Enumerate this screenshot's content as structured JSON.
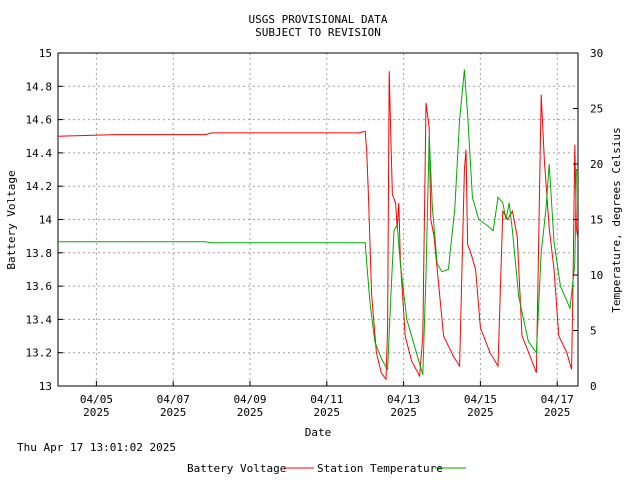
{
  "chart_data": {
    "type": "line",
    "title": [
      "USGS PROVISIONAL DATA",
      "SUBJECT TO REVISION"
    ],
    "xlabel": "Date",
    "ylabel": "Battery Voltage",
    "y2label": "Temperature, degrees Celsius",
    "timestamp": "Thu Apr 17 13:01:02 2025",
    "xlim": [
      "2025-04-04",
      "2025-04-17T13:00"
    ],
    "ylim": [
      13,
      15
    ],
    "y2lim": [
      0,
      30
    ],
    "grid": true,
    "x_ticks": [
      {
        "date": "2025-04-05",
        "label": "04/05",
        "year": "2025"
      },
      {
        "date": "2025-04-07",
        "label": "04/07",
        "year": "2025"
      },
      {
        "date": "2025-04-09",
        "label": "04/09",
        "year": "2025"
      },
      {
        "date": "2025-04-11",
        "label": "04/11",
        "year": "2025"
      },
      {
        "date": "2025-04-13",
        "label": "04/13",
        "year": "2025"
      },
      {
        "date": "2025-04-15",
        "label": "04/15",
        "year": "2025"
      },
      {
        "date": "2025-04-17",
        "label": "04/17",
        "year": "2025"
      }
    ],
    "y_ticks": [
      "13",
      "13.2",
      "13.4",
      "13.6",
      "13.8",
      "14",
      "14.2",
      "14.4",
      "14.6",
      "14.8",
      "15"
    ],
    "y2_ticks": [
      "0",
      "5",
      "10",
      "15",
      "20",
      "25",
      "30"
    ],
    "legend_position": "bottom",
    "series": [
      {
        "name": "Battery Voltage",
        "color": "#ff0000",
        "axis": "left",
        "points": [
          [
            "2025-04-04T00:00",
            14.5
          ],
          [
            "2025-04-05T12:00",
            14.51
          ],
          [
            "2025-04-07T20:00",
            14.51
          ],
          [
            "2025-04-08T00:00",
            14.52
          ],
          [
            "2025-04-11T20:00",
            14.52
          ],
          [
            "2025-04-12T00:00",
            14.53
          ],
          [
            "2025-04-12T01:00",
            14.4
          ],
          [
            "2025-04-12T02:00",
            14.15
          ],
          [
            "2025-04-12T04:00",
            13.55
          ],
          [
            "2025-04-12T07:00",
            13.2
          ],
          [
            "2025-04-12T10:00",
            13.08
          ],
          [
            "2025-04-12T13:00",
            13.04
          ],
          [
            "2025-04-12T14:00",
            13.35
          ],
          [
            "2025-04-12T15:00",
            14.89
          ],
          [
            "2025-04-12T16:00",
            14.5
          ],
          [
            "2025-04-12T17:00",
            14.15
          ],
          [
            "2025-04-12T19:00",
            14.1
          ],
          [
            "2025-04-12T20:00",
            13.95
          ],
          [
            "2025-04-12T21:00",
            14.1
          ],
          [
            "2025-04-12T22:00",
            13.75
          ],
          [
            "2025-04-13T01:00",
            13.3
          ],
          [
            "2025-04-13T05:00",
            13.15
          ],
          [
            "2025-04-13T10:00",
            13.06
          ],
          [
            "2025-04-13T12:00",
            13.3
          ],
          [
            "2025-04-13T14:00",
            14.7
          ],
          [
            "2025-04-13T16:00",
            14.55
          ],
          [
            "2025-04-13T17:00",
            14.0
          ],
          [
            "2025-04-13T19:00",
            13.9
          ],
          [
            "2025-04-13T22:00",
            13.6
          ],
          [
            "2025-04-14T01:00",
            13.3
          ],
          [
            "2025-04-14T07:00",
            13.18
          ],
          [
            "2025-04-14T11:00",
            13.12
          ],
          [
            "2025-04-14T14:00",
            14.3
          ],
          [
            "2025-04-14T15:00",
            14.42
          ],
          [
            "2025-04-14T16:00",
            13.85
          ],
          [
            "2025-04-14T18:00",
            13.8
          ],
          [
            "2025-04-14T21:00",
            13.7
          ],
          [
            "2025-04-15T00:00",
            13.35
          ],
          [
            "2025-04-15T06:00",
            13.2
          ],
          [
            "2025-04-15T11:00",
            13.12
          ],
          [
            "2025-04-15T14:00",
            14.05
          ],
          [
            "2025-04-15T17:00",
            14.0
          ],
          [
            "2025-04-15T20:00",
            14.05
          ],
          [
            "2025-04-15T23:00",
            13.9
          ],
          [
            "2025-04-16T02:00",
            13.3
          ],
          [
            "2025-04-16T07:00",
            13.18
          ],
          [
            "2025-04-16T11:00",
            13.08
          ],
          [
            "2025-04-16T14:00",
            14.75
          ],
          [
            "2025-04-16T16:00",
            14.35
          ],
          [
            "2025-04-16T19:00",
            13.95
          ],
          [
            "2025-04-16T22:00",
            13.7
          ],
          [
            "2025-04-17T01:00",
            13.3
          ],
          [
            "2025-04-17T06:00",
            13.2
          ],
          [
            "2025-04-17T09:00",
            13.1
          ],
          [
            "2025-04-17T10:00",
            13.7
          ],
          [
            "2025-04-17T11:00",
            14.45
          ],
          [
            "2025-04-17T12:00",
            13.95
          ],
          [
            "2025-04-17T13:00",
            13.88
          ]
        ]
      },
      {
        "name": "Station Temperature",
        "color": "#00aa00",
        "axis": "right",
        "points": [
          [
            "2025-04-04T00:00",
            13.0
          ],
          [
            "2025-04-07T20:00",
            13.0
          ],
          [
            "2025-04-08T00:00",
            12.9
          ],
          [
            "2025-04-12T00:00",
            12.9
          ],
          [
            "2025-04-12T01:00",
            11.0
          ],
          [
            "2025-04-12T03:00",
            7.5
          ],
          [
            "2025-04-12T06:00",
            4.0
          ],
          [
            "2025-04-12T10:00",
            2.5
          ],
          [
            "2025-04-12T14:00",
            1.5
          ],
          [
            "2025-04-12T16:00",
            8.0
          ],
          [
            "2025-04-12T18:00",
            14.0
          ],
          [
            "2025-04-12T20:00",
            14.5
          ],
          [
            "2025-04-12T22:00",
            11.0
          ],
          [
            "2025-04-13T02:00",
            6.0
          ],
          [
            "2025-04-13T08:00",
            3.0
          ],
          [
            "2025-04-13T12:00",
            1.0
          ],
          [
            "2025-04-13T14:00",
            10.0
          ],
          [
            "2025-04-13T16:00",
            22.5
          ],
          [
            "2025-04-13T18:00",
            16.0
          ],
          [
            "2025-04-13T21:00",
            11.0
          ],
          [
            "2025-04-14T00:00",
            10.3
          ],
          [
            "2025-04-14T04:00",
            10.5
          ],
          [
            "2025-04-14T08:00",
            16.0
          ],
          [
            "2025-04-14T11:00",
            24.0
          ],
          [
            "2025-04-14T14:00",
            28.5
          ],
          [
            "2025-04-14T16:00",
            24.5
          ],
          [
            "2025-04-14T19:00",
            17.0
          ],
          [
            "2025-04-14T23:00",
            15.0
          ],
          [
            "2025-04-15T04:00",
            14.5
          ],
          [
            "2025-04-15T08:00",
            14.0
          ],
          [
            "2025-04-15T11:00",
            17.0
          ],
          [
            "2025-04-15T14:00",
            16.5
          ],
          [
            "2025-04-15T16:00",
            15.0
          ],
          [
            "2025-04-15T18:00",
            16.5
          ],
          [
            "2025-04-15T20:00",
            14.0
          ],
          [
            "2025-04-16T00:00",
            8.0
          ],
          [
            "2025-04-16T06:00",
            4.0
          ],
          [
            "2025-04-16T11:00",
            3.0
          ],
          [
            "2025-04-16T14:00",
            12.0
          ],
          [
            "2025-04-16T17:00",
            16.0
          ],
          [
            "2025-04-16T19:00",
            20.0
          ],
          [
            "2025-04-16T22:00",
            13.0
          ],
          [
            "2025-04-17T02:00",
            9.0
          ],
          [
            "2025-04-17T08:00",
            7.0
          ],
          [
            "2025-04-17T11:00",
            11.0
          ],
          [
            "2025-04-17T12:00",
            19.5
          ],
          [
            "2025-04-17T13:00",
            19.5
          ]
        ]
      }
    ]
  }
}
